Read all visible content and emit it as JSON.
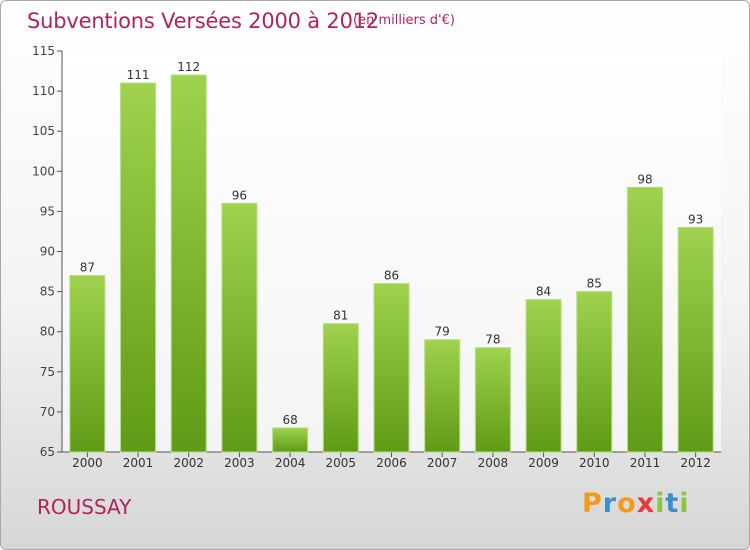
{
  "header": {
    "title": "Subventions Versées 2000 à 2012",
    "subtitle": "(en milliers d'€)"
  },
  "footer": {
    "commune": "ROUSSAY",
    "logo": [
      "P",
      "r",
      "o",
      "x",
      "i",
      "t",
      "i"
    ],
    "logo_colors": [
      "#f39a1e",
      "#3b8fd1",
      "#f39a1e",
      "#e8393e",
      "#8cc63f",
      "#3b8fd1",
      "#8cc63f"
    ]
  },
  "colors": {
    "accent": "#b0245e",
    "bar_top": "#9fd24e",
    "bar_bottom": "#5f9b16",
    "axis": "#555555",
    "grid": "#cfcfcf"
  },
  "chart_data": {
    "type": "bar",
    "title": "Subventions Versées 2000 à 2012",
    "subtitle": "(en milliers d'€)",
    "categories": [
      "2000",
      "2001",
      "2002",
      "2003",
      "2004",
      "2005",
      "2006",
      "2007",
      "2008",
      "2009",
      "2010",
      "2011",
      "2012"
    ],
    "values": [
      87,
      111,
      112,
      96,
      68,
      81,
      86,
      79,
      78,
      84,
      85,
      98,
      93
    ],
    "ylim": [
      65,
      115
    ],
    "yticks": [
      65,
      70,
      75,
      80,
      85,
      90,
      95,
      100,
      105,
      110,
      115
    ],
    "grid": false,
    "data_labels": true
  }
}
